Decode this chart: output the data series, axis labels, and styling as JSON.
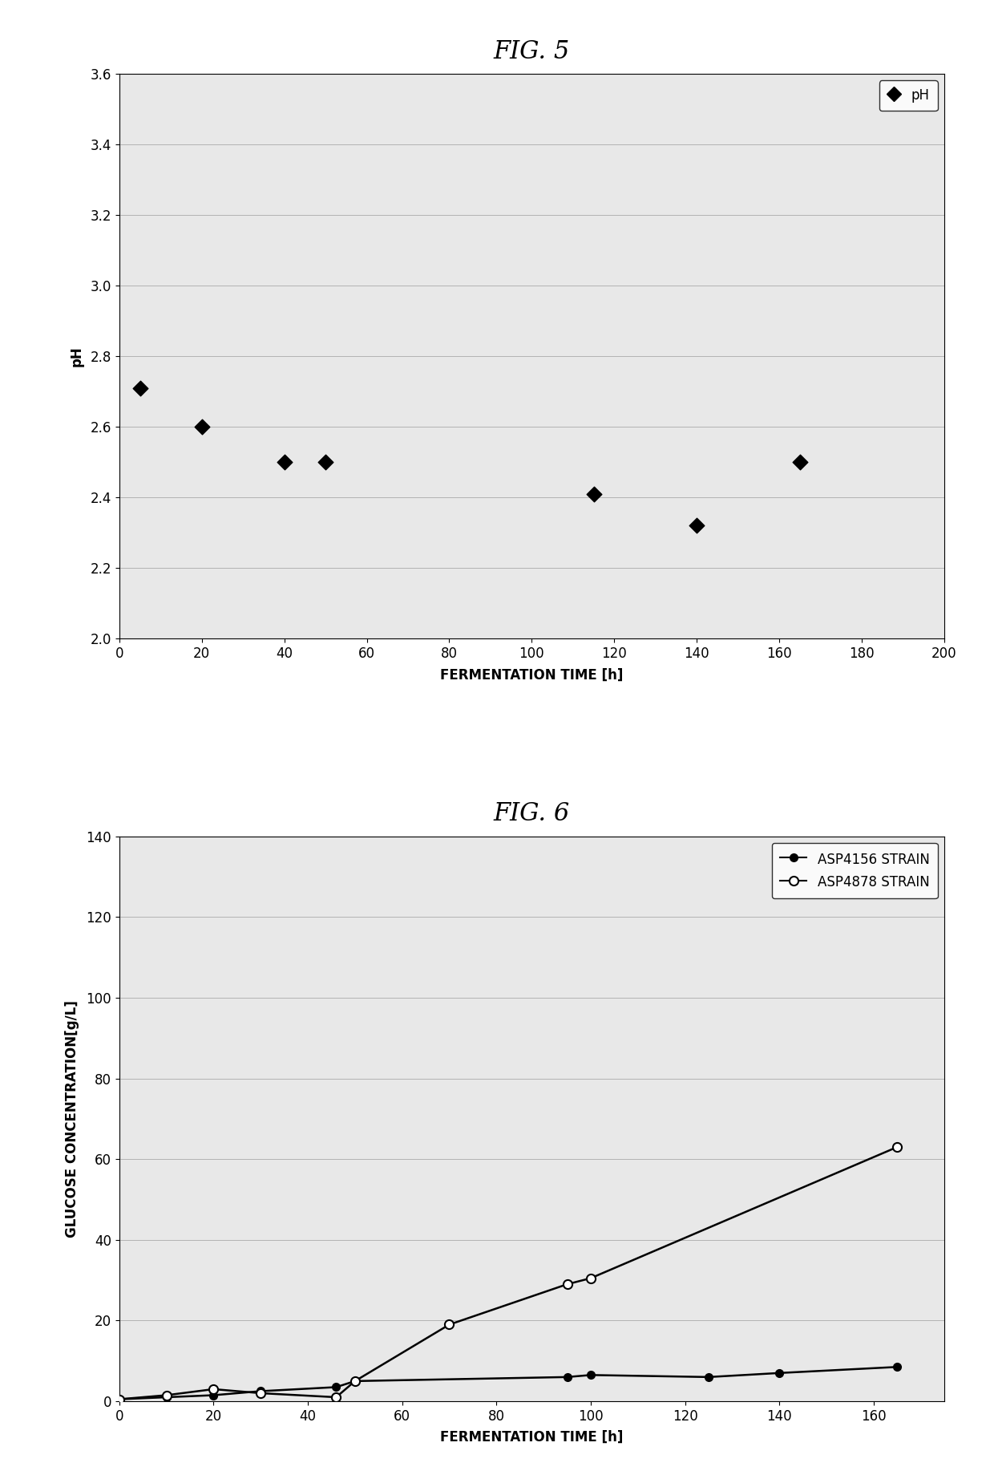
{
  "fig5": {
    "title": "FIG. 5",
    "xlabel": "FERMENTATION TIME [h]",
    "ylabel": "pH",
    "xlim": [
      0,
      200
    ],
    "ylim": [
      2.0,
      3.6
    ],
    "xticks": [
      0,
      20,
      40,
      60,
      80,
      100,
      120,
      140,
      160,
      180,
      200
    ],
    "yticks": [
      2.0,
      2.2,
      2.4,
      2.6,
      2.8,
      3.0,
      3.2,
      3.4,
      3.6
    ],
    "ph_x": [
      5,
      20,
      40,
      50,
      115,
      140,
      165
    ],
    "ph_y": [
      2.71,
      2.6,
      2.5,
      2.5,
      2.41,
      2.32,
      2.5
    ],
    "legend_label": "pH",
    "marker_color": "black",
    "marker": "D"
  },
  "fig6": {
    "title": "FIG. 6",
    "xlabel": "FERMENTATION TIME [h]",
    "ylabel": "GLUCOSE CONCENTRATION[g/L]",
    "xlim": [
      0,
      175
    ],
    "ylim": [
      0,
      140
    ],
    "xticks": [
      0,
      20,
      40,
      60,
      80,
      100,
      120,
      140,
      160
    ],
    "yticks": [
      0,
      20,
      40,
      60,
      80,
      100,
      120,
      140
    ],
    "asp4156_x": [
      0,
      10,
      20,
      30,
      46,
      50,
      95,
      100,
      125,
      140,
      165
    ],
    "asp4156_y": [
      0.5,
      1.0,
      1.5,
      2.5,
      3.5,
      5.0,
      6.0,
      6.5,
      6.0,
      7.0,
      8.5
    ],
    "asp4878_x": [
      0,
      10,
      20,
      30,
      46,
      50,
      70,
      95,
      100,
      165
    ],
    "asp4878_y": [
      0.5,
      1.5,
      3.0,
      2.0,
      1.0,
      5.0,
      19.0,
      29.0,
      30.5,
      63.0
    ],
    "legend_label_4156": "ASP4156 STRAIN",
    "legend_label_4878": "ASP4878 STRAIN",
    "color_4156": "black",
    "color_4878": "black"
  },
  "bg_color": "#e8e8e8",
  "title_fontsize": 22,
  "axis_label_fontsize": 12,
  "tick_fontsize": 12,
  "legend_fontsize": 12
}
